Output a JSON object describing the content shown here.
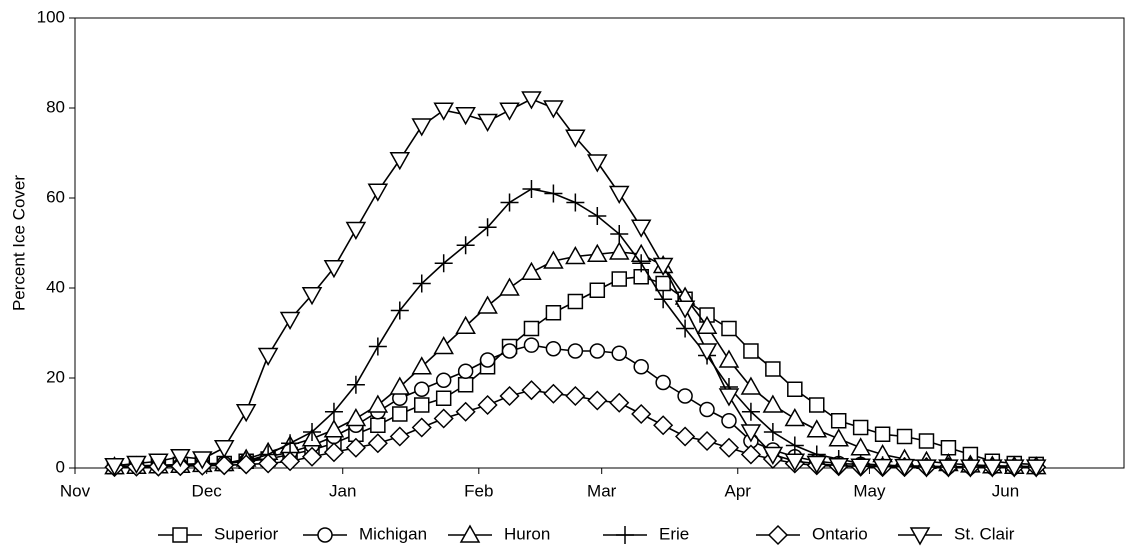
{
  "chart_data": {
    "type": "line",
    "y_label": "Percent Ice Cover",
    "x": [
      9,
      14,
      19,
      24,
      29,
      34,
      39,
      44,
      49,
      54,
      59,
      64,
      69,
      74,
      79,
      84,
      89,
      94,
      99,
      104,
      109,
      114,
      119,
      124,
      129,
      134,
      139,
      144,
      149,
      154,
      159,
      164,
      169,
      174,
      179,
      184,
      189,
      194,
      199,
      204,
      209,
      214,
      219
    ],
    "xlim": [
      0,
      239
    ],
    "xticks": [
      {
        "value": 0,
        "label": "Nov"
      },
      {
        "value": 30,
        "label": "Dec"
      },
      {
        "value": 61,
        "label": "Jan"
      },
      {
        "value": 92,
        "label": "Feb"
      },
      {
        "value": 120,
        "label": "Mar"
      },
      {
        "value": 151,
        "label": "Apr"
      },
      {
        "value": 181,
        "label": "May"
      },
      {
        "value": 212,
        "label": "Jun"
      }
    ],
    "ylim": [
      0,
      100
    ],
    "yticks": [
      0,
      20,
      40,
      60,
      80,
      100
    ],
    "legend": "bottom",
    "series": [
      {
        "name": "Superior",
        "color": "#000000",
        "marker": "square",
        "values": [
          0.3,
          0.5,
          0.6,
          0.8,
          1,
          1,
          1.5,
          2,
          3,
          4,
          5.5,
          7.5,
          9.5,
          12,
          14,
          15.5,
          18.5,
          22.5,
          27,
          31,
          34.5,
          37,
          39.5,
          42,
          42.5,
          41,
          37.5,
          34,
          31,
          26,
          22,
          17.5,
          14,
          10.5,
          9,
          7.5,
          7,
          6,
          4.5,
          3,
          1.5,
          1,
          0.8
        ]
      },
      {
        "name": "Michigan",
        "color": "#000000",
        "marker": "circle",
        "values": [
          0.3,
          0.4,
          0.5,
          0.6,
          0.8,
          1,
          1.5,
          2.5,
          3.5,
          5,
          7,
          9.5,
          12.5,
          15.5,
          17.5,
          19.5,
          21.5,
          24,
          26,
          27.3,
          26.5,
          26,
          26,
          25.5,
          22.5,
          19,
          16,
          13,
          10.5,
          6,
          4,
          2.5,
          1.5,
          1,
          0.8,
          0.6,
          0.5,
          0.4,
          0.3,
          0.3,
          0.2,
          0.2,
          0.2
        ]
      },
      {
        "name": "Huron",
        "color": "#000000",
        "marker": "triangle-up",
        "values": [
          0.3,
          0.4,
          0.5,
          0.6,
          0.8,
          1,
          2,
          3.5,
          5,
          6.5,
          8.5,
          11,
          14,
          18,
          22.5,
          27,
          31.5,
          36,
          40,
          43.5,
          46,
          47,
          47.5,
          48,
          47.5,
          45,
          38,
          31.5,
          24,
          18,
          14,
          11,
          8.5,
          6.5,
          4.5,
          3,
          2,
          1.5,
          1,
          0.7,
          0.5,
          0.4,
          0.3
        ]
      },
      {
        "name": "Erie",
        "color": "#000000",
        "marker": "plus",
        "values": [
          0.3,
          0.4,
          0.5,
          0.6,
          0.8,
          1,
          1.5,
          3,
          5.5,
          8,
          12.5,
          18.5,
          27,
          35,
          41,
          45.5,
          49.5,
          53.5,
          59,
          62,
          61,
          59,
          56,
          52,
          45.5,
          37.5,
          31,
          25,
          18,
          12.5,
          8,
          5,
          3,
          2,
          1,
          0.6,
          0.4,
          0.3,
          0.2,
          0.2,
          0.2,
          0.2,
          0.2
        ]
      },
      {
        "name": "Ontario",
        "color": "#000000",
        "marker": "diamond",
        "values": [
          0.2,
          0.3,
          0.3,
          0.4,
          0.5,
          0.6,
          0.8,
          1,
          1.5,
          2.5,
          3.5,
          4.5,
          5.5,
          7,
          9,
          11,
          12.5,
          14,
          16,
          17.3,
          16.5,
          16,
          15,
          14.5,
          12,
          9.5,
          7,
          6,
          4.5,
          3,
          2,
          1,
          0.6,
          0.4,
          0.3,
          0.2,
          0.2,
          0.2,
          0.2,
          0.2,
          0.2,
          0.2,
          0.2
        ]
      },
      {
        "name": "St. Clair",
        "color": "#000000",
        "marker": "triangle-down",
        "values": [
          0.5,
          1,
          1.5,
          2.5,
          2,
          4.5,
          12.5,
          25,
          33,
          38.5,
          44.5,
          53,
          61.5,
          68.5,
          76,
          79.5,
          78.5,
          77,
          79.5,
          82,
          80,
          73.5,
          68,
          61,
          53.5,
          45,
          35.5,
          26,
          16,
          8,
          3,
          1.5,
          1,
          0.5,
          0.4,
          0.3,
          0.3,
          0.2,
          0.2,
          0.2,
          0.2,
          0.2,
          0.2
        ]
      }
    ]
  }
}
